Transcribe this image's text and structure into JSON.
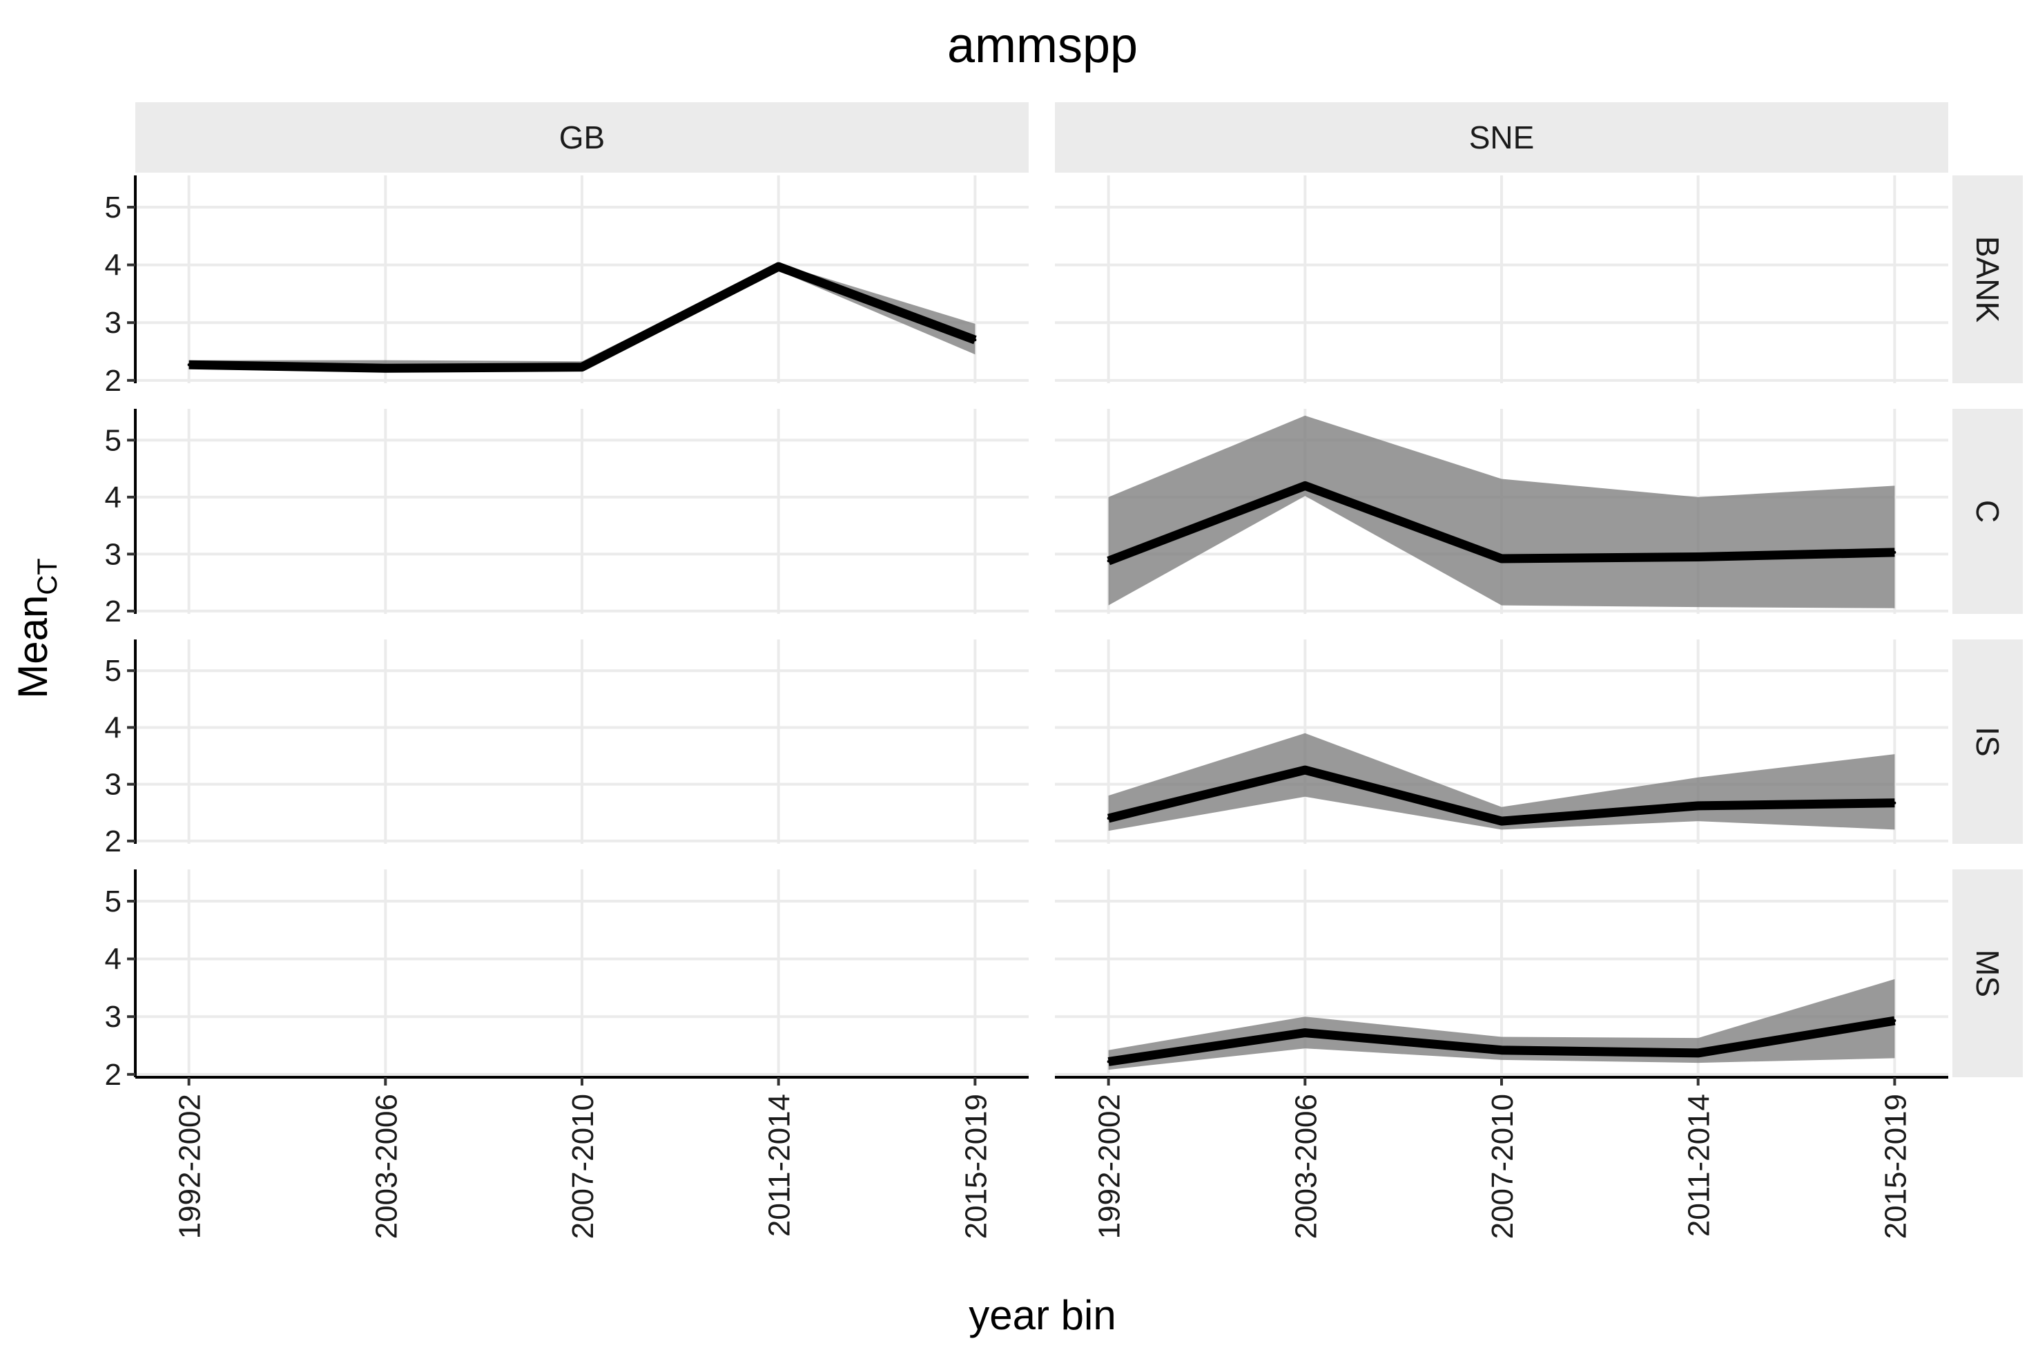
{
  "chart_data": {
    "type": "line",
    "title": "ammspp",
    "xlabel": "year bin",
    "ylabel": "Mean",
    "ylabel_subscript": "CT",
    "categories": [
      "1992-2002",
      "2003-2006",
      "2007-2010",
      "2011-2014",
      "2015-2019"
    ],
    "y_ticks": [
      2,
      3,
      4,
      5
    ],
    "ylim": [
      1.95,
      5.55
    ],
    "grid": true,
    "facet_columns": [
      "GB",
      "SNE"
    ],
    "facet_rows": [
      "BANK",
      "C",
      "IS",
      "MS"
    ],
    "colors": {
      "line": "#000000",
      "ribbon": "#7f7f7f",
      "strip": "#ebebeb",
      "grid": "#ebebeb"
    },
    "panels": [
      {
        "column": "GB",
        "row": "BANK",
        "series": [
          {
            "x": "1992-2002",
            "y": 2.27,
            "lower": 2.22,
            "upper": 2.35
          },
          {
            "x": "2003-2006",
            "y": 2.21,
            "lower": 2.17,
            "upper": 2.35
          },
          {
            "x": "2007-2010",
            "y": 2.23,
            "lower": 2.18,
            "upper": 2.33
          },
          {
            "x": "2011-2014",
            "y": 3.97,
            "lower": 3.9,
            "upper": 4.02
          },
          {
            "x": "2015-2019",
            "y": 2.7,
            "lower": 2.45,
            "upper": 2.98
          }
        ]
      },
      {
        "column": "SNE",
        "row": "BANK",
        "series": []
      },
      {
        "column": "GB",
        "row": "C",
        "series": []
      },
      {
        "column": "SNE",
        "row": "C",
        "series": [
          {
            "x": "1992-2002",
            "y": 2.88,
            "lower": 2.1,
            "upper": 4.0
          },
          {
            "x": "2003-2006",
            "y": 4.2,
            "lower": 4.02,
            "upper": 5.43
          },
          {
            "x": "2007-2010",
            "y": 2.92,
            "lower": 2.1,
            "upper": 4.32
          },
          {
            "x": "2011-2014",
            "y": 2.95,
            "lower": 2.07,
            "upper": 4.0
          },
          {
            "x": "2015-2019",
            "y": 3.03,
            "lower": 2.05,
            "upper": 4.2
          }
        ]
      },
      {
        "column": "GB",
        "row": "IS",
        "series": []
      },
      {
        "column": "SNE",
        "row": "IS",
        "series": [
          {
            "x": "1992-2002",
            "y": 2.4,
            "lower": 2.18,
            "upper": 2.8
          },
          {
            "x": "2003-2006",
            "y": 3.25,
            "lower": 2.78,
            "upper": 3.9
          },
          {
            "x": "2007-2010",
            "y": 2.35,
            "lower": 2.2,
            "upper": 2.6
          },
          {
            "x": "2011-2014",
            "y": 2.62,
            "lower": 2.35,
            "upper": 3.12
          },
          {
            "x": "2015-2019",
            "y": 2.67,
            "lower": 2.2,
            "upper": 3.53
          }
        ]
      },
      {
        "column": "GB",
        "row": "MS",
        "series": []
      },
      {
        "column": "SNE",
        "row": "MS",
        "series": [
          {
            "x": "1992-2002",
            "y": 2.22,
            "lower": 2.08,
            "upper": 2.42
          },
          {
            "x": "2003-2006",
            "y": 2.72,
            "lower": 2.45,
            "upper": 3.0
          },
          {
            "x": "2007-2010",
            "y": 2.42,
            "lower": 2.25,
            "upper": 2.65
          },
          {
            "x": "2011-2014",
            "y": 2.37,
            "lower": 2.2,
            "upper": 2.63
          },
          {
            "x": "2015-2019",
            "y": 2.93,
            "lower": 2.28,
            "upper": 3.65
          }
        ]
      }
    ]
  }
}
